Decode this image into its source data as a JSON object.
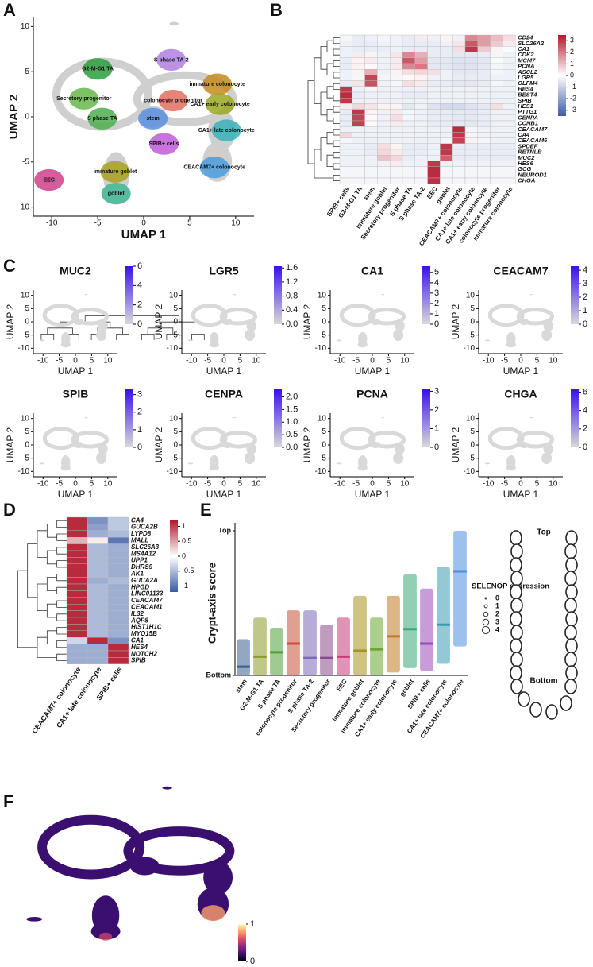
{
  "panel_labels": [
    "A",
    "B",
    "C",
    "D",
    "E",
    "F"
  ],
  "crypt_diagram": {
    "top": "Top",
    "bottom": "Bottom"
  },
  "chart_data": [
    {
      "type": "umap",
      "xlabel": "UMAP 1",
      "ylabel": "UMAP 2",
      "xlim": [
        -12,
        12
      ],
      "ylim": [
        -11,
        11
      ],
      "xticks": [
        -10,
        -5,
        0,
        5,
        10
      ],
      "yticks": [
        -10,
        -5,
        0,
        5,
        10
      ],
      "clusters": [
        {
          "label": "S phase TA-2",
          "x": 3,
          "y": 6.3,
          "color": "#b07fe0"
        },
        {
          "label": "G2-M-G1 TA",
          "x": -5,
          "y": 5.3,
          "color": "#2e9e3e"
        },
        {
          "label": "Secretory progenitor",
          "x": -6.5,
          "y": 2,
          "color": "#66b84a"
        },
        {
          "label": "immature colonocyte",
          "x": 8,
          "y": 3.6,
          "color": "#c68a1e"
        },
        {
          "label": "colonocyte progenitor",
          "x": 3.2,
          "y": 1.8,
          "color": "#e07060"
        },
        {
          "label": "CA1+ early colonocyte",
          "x": 8.3,
          "y": 1.4,
          "color": "#9aa81e"
        },
        {
          "label": "S phase TA",
          "x": -4.5,
          "y": -0.2,
          "color": "#4cae4c"
        },
        {
          "label": "stem",
          "x": 1,
          "y": -0.2,
          "color": "#5b8fe0"
        },
        {
          "label": "CA1+ late colonocyte",
          "x": 9,
          "y": -1.5,
          "color": "#3ab0b8"
        },
        {
          "label": "SPIB+ cells",
          "x": 2.2,
          "y": -3,
          "color": "#c05ad8"
        },
        {
          "label": "CEACAM7+ colonocyte",
          "x": 7.7,
          "y": -5.6,
          "color": "#4a9ee0"
        },
        {
          "label": "immature goblet",
          "x": -3.1,
          "y": -6.1,
          "color": "#a8a020"
        },
        {
          "label": "EEC",
          "x": -10.3,
          "y": -7,
          "color": "#d0408a"
        },
        {
          "label": "goblet",
          "x": -3,
          "y": -8.5,
          "color": "#40b898"
        }
      ]
    },
    {
      "type": "heatmap",
      "columns": [
        "SPIB+ cells",
        "G2-M-G1 TA",
        "stem",
        "immature goblet",
        "Secretory progenitor",
        "S phase TA",
        "S phase TA-2",
        "EEC",
        "goblet",
        "CEACAM7+ colonocyte",
        "CA1+ late colonocyte",
        "CA1+ early colonocyte",
        "colonocyte progenitor",
        "immature colonocyte"
      ],
      "rows": [
        "CD24",
        "SLC26A2",
        "CA1",
        "CDK2",
        "MCM7",
        "PCNA",
        "ASCL2",
        "LGR5",
        "OLFM4",
        "HES4",
        "BEST4",
        "SPIB",
        "HES1",
        "PTTG1",
        "CENPA",
        "CCNB1",
        "CEACAM7",
        "CA4",
        "CEACAM6",
        "SPDEF",
        "RETNLB",
        "MUC2",
        "HES6",
        "GCG",
        "NEUROD1",
        "CHGA"
      ],
      "values": [
        [
          -0.2,
          -0.4,
          -0.3,
          -0.2,
          -0.3,
          -0.4,
          0.3,
          -0.3,
          0.2,
          -0.3,
          1.8,
          1.5,
          1.0,
          0.5
        ],
        [
          -0.3,
          -0.4,
          -0.4,
          -0.3,
          -0.3,
          -0.4,
          -0.4,
          -0.4,
          -0.3,
          0.4,
          2.5,
          1.5,
          0.8,
          0.3
        ],
        [
          -0.3,
          -0.4,
          -0.4,
          -0.4,
          -0.3,
          -0.4,
          -0.4,
          -0.4,
          -0.4,
          0.5,
          3.0,
          0.8,
          0.2,
          -0.1
        ],
        [
          -0.3,
          0.3,
          0.2,
          -0.3,
          0.4,
          1.8,
          1.2,
          -0.4,
          -0.4,
          -0.5,
          -0.5,
          -0.4,
          -0.2,
          -0.3
        ],
        [
          -0.4,
          0.2,
          0.3,
          -0.3,
          0.3,
          2.5,
          1.5,
          -0.5,
          -0.5,
          -0.6,
          -0.6,
          -0.5,
          -0.1,
          -0.3
        ],
        [
          -0.4,
          0.2,
          0.1,
          -0.3,
          0.3,
          1.8,
          2.0,
          -0.5,
          -0.5,
          -0.6,
          -0.6,
          -0.5,
          -0.2,
          -0.3
        ],
        [
          -0.3,
          0.2,
          1.2,
          -0.3,
          0.2,
          0.5,
          0.6,
          0.5,
          -0.3,
          -0.5,
          -0.5,
          -0.4,
          -0.2,
          -0.3
        ],
        [
          -0.3,
          -0.2,
          2.8,
          -0.2,
          -0.2,
          0.1,
          0.2,
          -0.3,
          -0.3,
          -0.4,
          -0.4,
          -0.4,
          -0.3,
          -0.3
        ],
        [
          -0.4,
          0.4,
          2.6,
          -0.3,
          -0.2,
          0.5,
          0.3,
          -0.4,
          -0.4,
          -0.5,
          -0.5,
          -0.4,
          -0.2,
          -0.3
        ],
        [
          3.0,
          -0.3,
          -0.2,
          -0.3,
          -0.3,
          -0.3,
          -0.3,
          -0.3,
          -0.3,
          -0.3,
          -0.3,
          -0.3,
          -0.3,
          -0.3
        ],
        [
          3.2,
          -0.4,
          -0.3,
          -0.3,
          -0.3,
          -0.4,
          -0.4,
          -0.3,
          -0.3,
          -0.3,
          -0.3,
          -0.3,
          -0.3,
          -0.3
        ],
        [
          3.0,
          -0.3,
          -0.3,
          -0.3,
          -0.3,
          -0.3,
          -0.3,
          -0.3,
          -0.3,
          -0.3,
          -0.3,
          -0.3,
          -0.3,
          -0.3
        ],
        [
          0.3,
          0.6,
          0.4,
          0.2,
          0.2,
          -0.5,
          -0.3,
          -0.6,
          -0.8,
          -0.8,
          -0.6,
          -0.5,
          0.5,
          -0.3
        ],
        [
          -0.4,
          3.0,
          0.2,
          -0.3,
          0.3,
          -0.2,
          -0.3,
          -0.4,
          -0.4,
          -0.5,
          -0.5,
          -0.4,
          -0.3,
          -0.3
        ],
        [
          -0.4,
          2.8,
          0.1,
          -0.3,
          0.5,
          -0.2,
          -0.3,
          -0.4,
          -0.4,
          -0.5,
          -0.5,
          -0.4,
          -0.3,
          -0.3
        ],
        [
          -0.4,
          2.9,
          0.1,
          -0.3,
          0.3,
          -0.3,
          -0.3,
          -0.4,
          -0.4,
          -0.5,
          -0.5,
          -0.4,
          -0.3,
          -0.3
        ],
        [
          -0.3,
          -0.3,
          -0.3,
          -0.3,
          -0.3,
          -0.3,
          -0.3,
          -0.3,
          -0.3,
          3.2,
          -0.2,
          -0.3,
          -0.3,
          -0.3
        ],
        [
          0.6,
          -0.3,
          -0.3,
          -0.3,
          -0.3,
          -0.3,
          -0.3,
          -0.3,
          -0.3,
          3.0,
          -0.2,
          -0.3,
          -0.3,
          -0.3
        ],
        [
          -0.2,
          -0.3,
          -0.3,
          -0.3,
          -0.3,
          -0.3,
          -0.3,
          -0.3,
          -0.2,
          2.8,
          0.2,
          -0.2,
          -0.3,
          -0.3
        ],
        [
          -0.3,
          -0.3,
          -0.4,
          0.5,
          0.2,
          -0.4,
          -0.4,
          -0.3,
          3.0,
          -0.4,
          -0.4,
          -0.4,
          -0.4,
          -0.4
        ],
        [
          -0.3,
          -0.3,
          -0.4,
          0.6,
          0.3,
          -0.4,
          -0.4,
          -0.3,
          3.0,
          -0.4,
          -0.4,
          -0.4,
          -0.4,
          -0.4
        ],
        [
          -0.3,
          -0.3,
          -0.3,
          0.9,
          0.6,
          -0.4,
          -0.3,
          -0.3,
          2.4,
          -0.4,
          -0.4,
          -0.4,
          -0.4,
          -0.4
        ],
        [
          -0.3,
          -0.3,
          -0.3,
          -0.3,
          0.3,
          -0.3,
          -0.3,
          3.0,
          -0.3,
          -0.3,
          -0.3,
          -0.3,
          -0.3,
          -0.3
        ],
        [
          -0.2,
          -0.2,
          -0.2,
          -0.2,
          -0.2,
          -0.2,
          -0.2,
          3.2,
          -0.2,
          -0.2,
          -0.2,
          -0.2,
          -0.2,
          -0.2
        ],
        [
          -0.2,
          -0.2,
          -0.2,
          -0.2,
          -0.2,
          -0.2,
          -0.2,
          3.2,
          -0.2,
          -0.2,
          -0.2,
          -0.2,
          -0.2,
          -0.2
        ],
        [
          -0.2,
          -0.2,
          -0.2,
          -0.2,
          -0.2,
          -0.2,
          -0.2,
          3.1,
          -0.2,
          -0.2,
          -0.2,
          -0.2,
          -0.2,
          -0.2
        ]
      ],
      "zlim": [
        -3.5,
        3.5
      ],
      "zticks": [
        3,
        2,
        1,
        0,
        -1,
        -2,
        -3
      ],
      "colors": [
        "#3a5ca6",
        "#ffffff",
        "#b2182b"
      ]
    },
    {
      "type": "feature",
      "title": "MUC2",
      "xlabel": "UMAP 1",
      "ylabel": "UMAP 2",
      "xticks": [
        -10,
        -5,
        0,
        5,
        10
      ],
      "yticks": [
        -10,
        -5,
        0,
        5,
        10
      ],
      "clim": [
        0,
        6
      ],
      "cticks": [
        0,
        2,
        4,
        6
      ],
      "colors": [
        "#d9d9d9",
        "#3a10f0"
      ]
    },
    {
      "type": "feature",
      "title": "LGR5",
      "xlabel": "UMAP 1",
      "ylabel": "UMAP 2",
      "xticks": [
        -10,
        -5,
        0,
        5,
        10
      ],
      "yticks": [
        -10,
        -5,
        0,
        5,
        10
      ],
      "clim": [
        0,
        1.65
      ],
      "cticks": [
        {
          "value": 0,
          "label": "0.0"
        },
        0.4,
        0.8,
        1.2,
        1.6
      ],
      "colors": [
        "#d9d9d9",
        "#3a10f0"
      ]
    },
    {
      "type": "feature",
      "title": "CA1",
      "xlabel": "UMAP 1",
      "ylabel": "UMAP 2",
      "xticks": [
        -10,
        -5,
        0,
        5,
        10
      ],
      "yticks": [
        -10,
        -5,
        0,
        5,
        10
      ],
      "clim": [
        0,
        5.6
      ],
      "cticks": [
        0,
        1,
        2,
        3,
        4,
        5
      ],
      "colors": [
        "#d9d9d9",
        "#3a10f0"
      ]
    },
    {
      "type": "feature",
      "title": "CEACAM7",
      "xlabel": "UMAP 1",
      "ylabel": "UMAP 2",
      "xticks": [
        -10,
        -5,
        0,
        5,
        10
      ],
      "yticks": [
        -10,
        -5,
        0,
        5,
        10
      ],
      "clim": [
        0,
        4.3
      ],
      "cticks": [
        0,
        1,
        2,
        3,
        4
      ],
      "colors": [
        "#d9d9d9",
        "#3a10f0"
      ]
    },
    {
      "type": "feature",
      "title": "SPIB",
      "xlabel": "UMAP 1",
      "ylabel": "UMAP 2",
      "xticks": [
        -10,
        -5,
        0,
        5,
        10
      ],
      "yticks": [
        -10,
        -5,
        0,
        5,
        10
      ],
      "clim": [
        0,
        3.3
      ],
      "cticks": [
        0,
        1,
        2,
        3
      ],
      "colors": [
        "#d9d9d9",
        "#3a10f0"
      ]
    },
    {
      "type": "feature",
      "title": "CENPA",
      "xlabel": "UMAP 1",
      "ylabel": "UMAP 2",
      "xticks": [
        -10,
        -5,
        0,
        5,
        10
      ],
      "yticks": [
        -10,
        -5,
        0,
        5,
        10
      ],
      "clim": [
        0,
        2.3
      ],
      "cticks": [
        {
          "value": 0,
          "label": "0.0"
        },
        0.5,
        {
          "value": 1,
          "label": "1.0"
        },
        1.5,
        {
          "value": 2,
          "label": "2.0"
        }
      ],
      "colors": [
        "#d9d9d9",
        "#3a10f0"
      ]
    },
    {
      "type": "feature",
      "title": "PCNA",
      "xlabel": "UMAP 1",
      "ylabel": "UMAP 2",
      "xticks": [
        -10,
        -5,
        0,
        5,
        10
      ],
      "yticks": [
        -10,
        -5,
        0,
        5,
        10
      ],
      "clim": [
        0,
        3.1
      ],
      "cticks": [
        0,
        1,
        2,
        3
      ],
      "colors": [
        "#d9d9d9",
        "#3a10f0"
      ]
    },
    {
      "type": "feature",
      "title": "CHGA",
      "xlabel": "UMAP 1",
      "ylabel": "UMAP 2",
      "xticks": [
        -10,
        -5,
        0,
        5,
        10
      ],
      "yticks": [
        -10,
        -5,
        0,
        5,
        10
      ],
      "clim": [
        0,
        6.3
      ],
      "cticks": [
        0,
        2,
        4,
        6
      ],
      "colors": [
        "#d9d9d9",
        "#3a10f0"
      ]
    },
    {
      "type": "heatmap",
      "columns": [
        "CEACAM7+ colonocyte",
        "CA1+ late colonocyte",
        "SPIB+ cells"
      ],
      "rows": [
        "CA4",
        "GUCA2B",
        "LYPD8",
        "MALL",
        "SLC26A3",
        "MS4A12",
        "UPP1",
        "DHRS9",
        "AK1",
        "GUCA2A",
        "HPGD",
        "LINC01133",
        "CEACAM7",
        "CEACAM1",
        "IL32",
        "AQP8",
        "HIST1H1C",
        "MYO15B",
        "CA1",
        "HES4",
        "NOTCH2",
        "SPIB"
      ],
      "values": [
        [
          1.1,
          -0.8,
          -0.4
        ],
        [
          1.1,
          -0.7,
          -0.4
        ],
        [
          1.1,
          -0.6,
          -0.5
        ],
        [
          0.4,
          0.1,
          -1.0
        ],
        [
          1.1,
          -0.5,
          -0.6
        ],
        [
          1.1,
          -0.5,
          -0.6
        ],
        [
          1.1,
          -0.5,
          -0.6
        ],
        [
          1.1,
          -0.5,
          -0.6
        ],
        [
          1.1,
          -0.5,
          -0.6
        ],
        [
          1.1,
          -0.6,
          -0.5
        ],
        [
          1.1,
          -0.5,
          -0.6
        ],
        [
          1.1,
          -0.5,
          -0.6
        ],
        [
          1.1,
          -0.5,
          -0.6
        ],
        [
          1.1,
          -0.5,
          -0.6
        ],
        [
          1.1,
          -0.5,
          -0.6
        ],
        [
          1.1,
          -0.5,
          -0.6
        ],
        [
          1.1,
          -0.5,
          -0.6
        ],
        [
          1.1,
          -0.5,
          -0.6
        ],
        [
          -0.3,
          1.1,
          -0.8
        ],
        [
          -0.6,
          -0.6,
          1.1
        ],
        [
          -0.6,
          -0.6,
          1.1
        ],
        [
          -0.6,
          -0.6,
          1.1
        ]
      ],
      "zlim": [
        -1.2,
        1.2
      ],
      "zticks": [
        1,
        0.5,
        0,
        -0.5,
        -1
      ],
      "colors": [
        "#3a5ca6",
        "#ffffff",
        "#b2182b"
      ]
    },
    {
      "type": "strip",
      "ylabel": "Crypt-axis score",
      "ylim": [
        0,
        1
      ],
      "yticks": [
        {
          "value": 0,
          "label": "Bottom"
        },
        {
          "value": 1,
          "label": "Top"
        }
      ],
      "categories": [
        "stem",
        "G2-M-G1 TA",
        "S phase TA",
        "colonocyte progenitor",
        "S phase TA-2",
        "Secretory progenitor",
        "EEC",
        "immature goblet",
        "immature colonocyte",
        "CA1+ early colonocyte",
        "goblet",
        "SPIB+ cells",
        "CA1+ late colonocyte",
        "CEACAM7+ colonocyte"
      ],
      "low": [
        0,
        0,
        0,
        0,
        0,
        0,
        0,
        0,
        0,
        0.02,
        0.05,
        0.03,
        0.08,
        0.2
      ],
      "median": [
        0.06,
        0.13,
        0.16,
        0.22,
        0.12,
        0.12,
        0.13,
        0.17,
        0.18,
        0.27,
        0.32,
        0.22,
        0.35,
        0.72
      ],
      "high": [
        0.25,
        0.4,
        0.33,
        0.45,
        0.45,
        0.35,
        0.4,
        0.55,
        0.4,
        0.55,
        0.7,
        0.6,
        0.75,
        1.0
      ],
      "colors": [
        "#3a5f8f",
        "#8b9a2a",
        "#4e9e3a",
        "#c8503a",
        "#7b68b8",
        "#8a4a8a",
        "#c83a78",
        "#a8901e",
        "#6aa830",
        "#c07a20",
        "#3aa878",
        "#9a4ab8",
        "#3a9ab0",
        "#4a8ee0"
      ],
      "size_legend": {
        "title": "SELENOP expression",
        "values": [
          0,
          1,
          2,
          3,
          4
        ]
      }
    },
    {
      "type": "umap_score",
      "clim": [
        0,
        1
      ],
      "cticks": [
        0,
        1
      ],
      "colors": [
        "#000004",
        "#3b0f70",
        "#8c2981",
        "#de4968",
        "#fe9f6d",
        "#fcfdbf"
      ]
    }
  ]
}
